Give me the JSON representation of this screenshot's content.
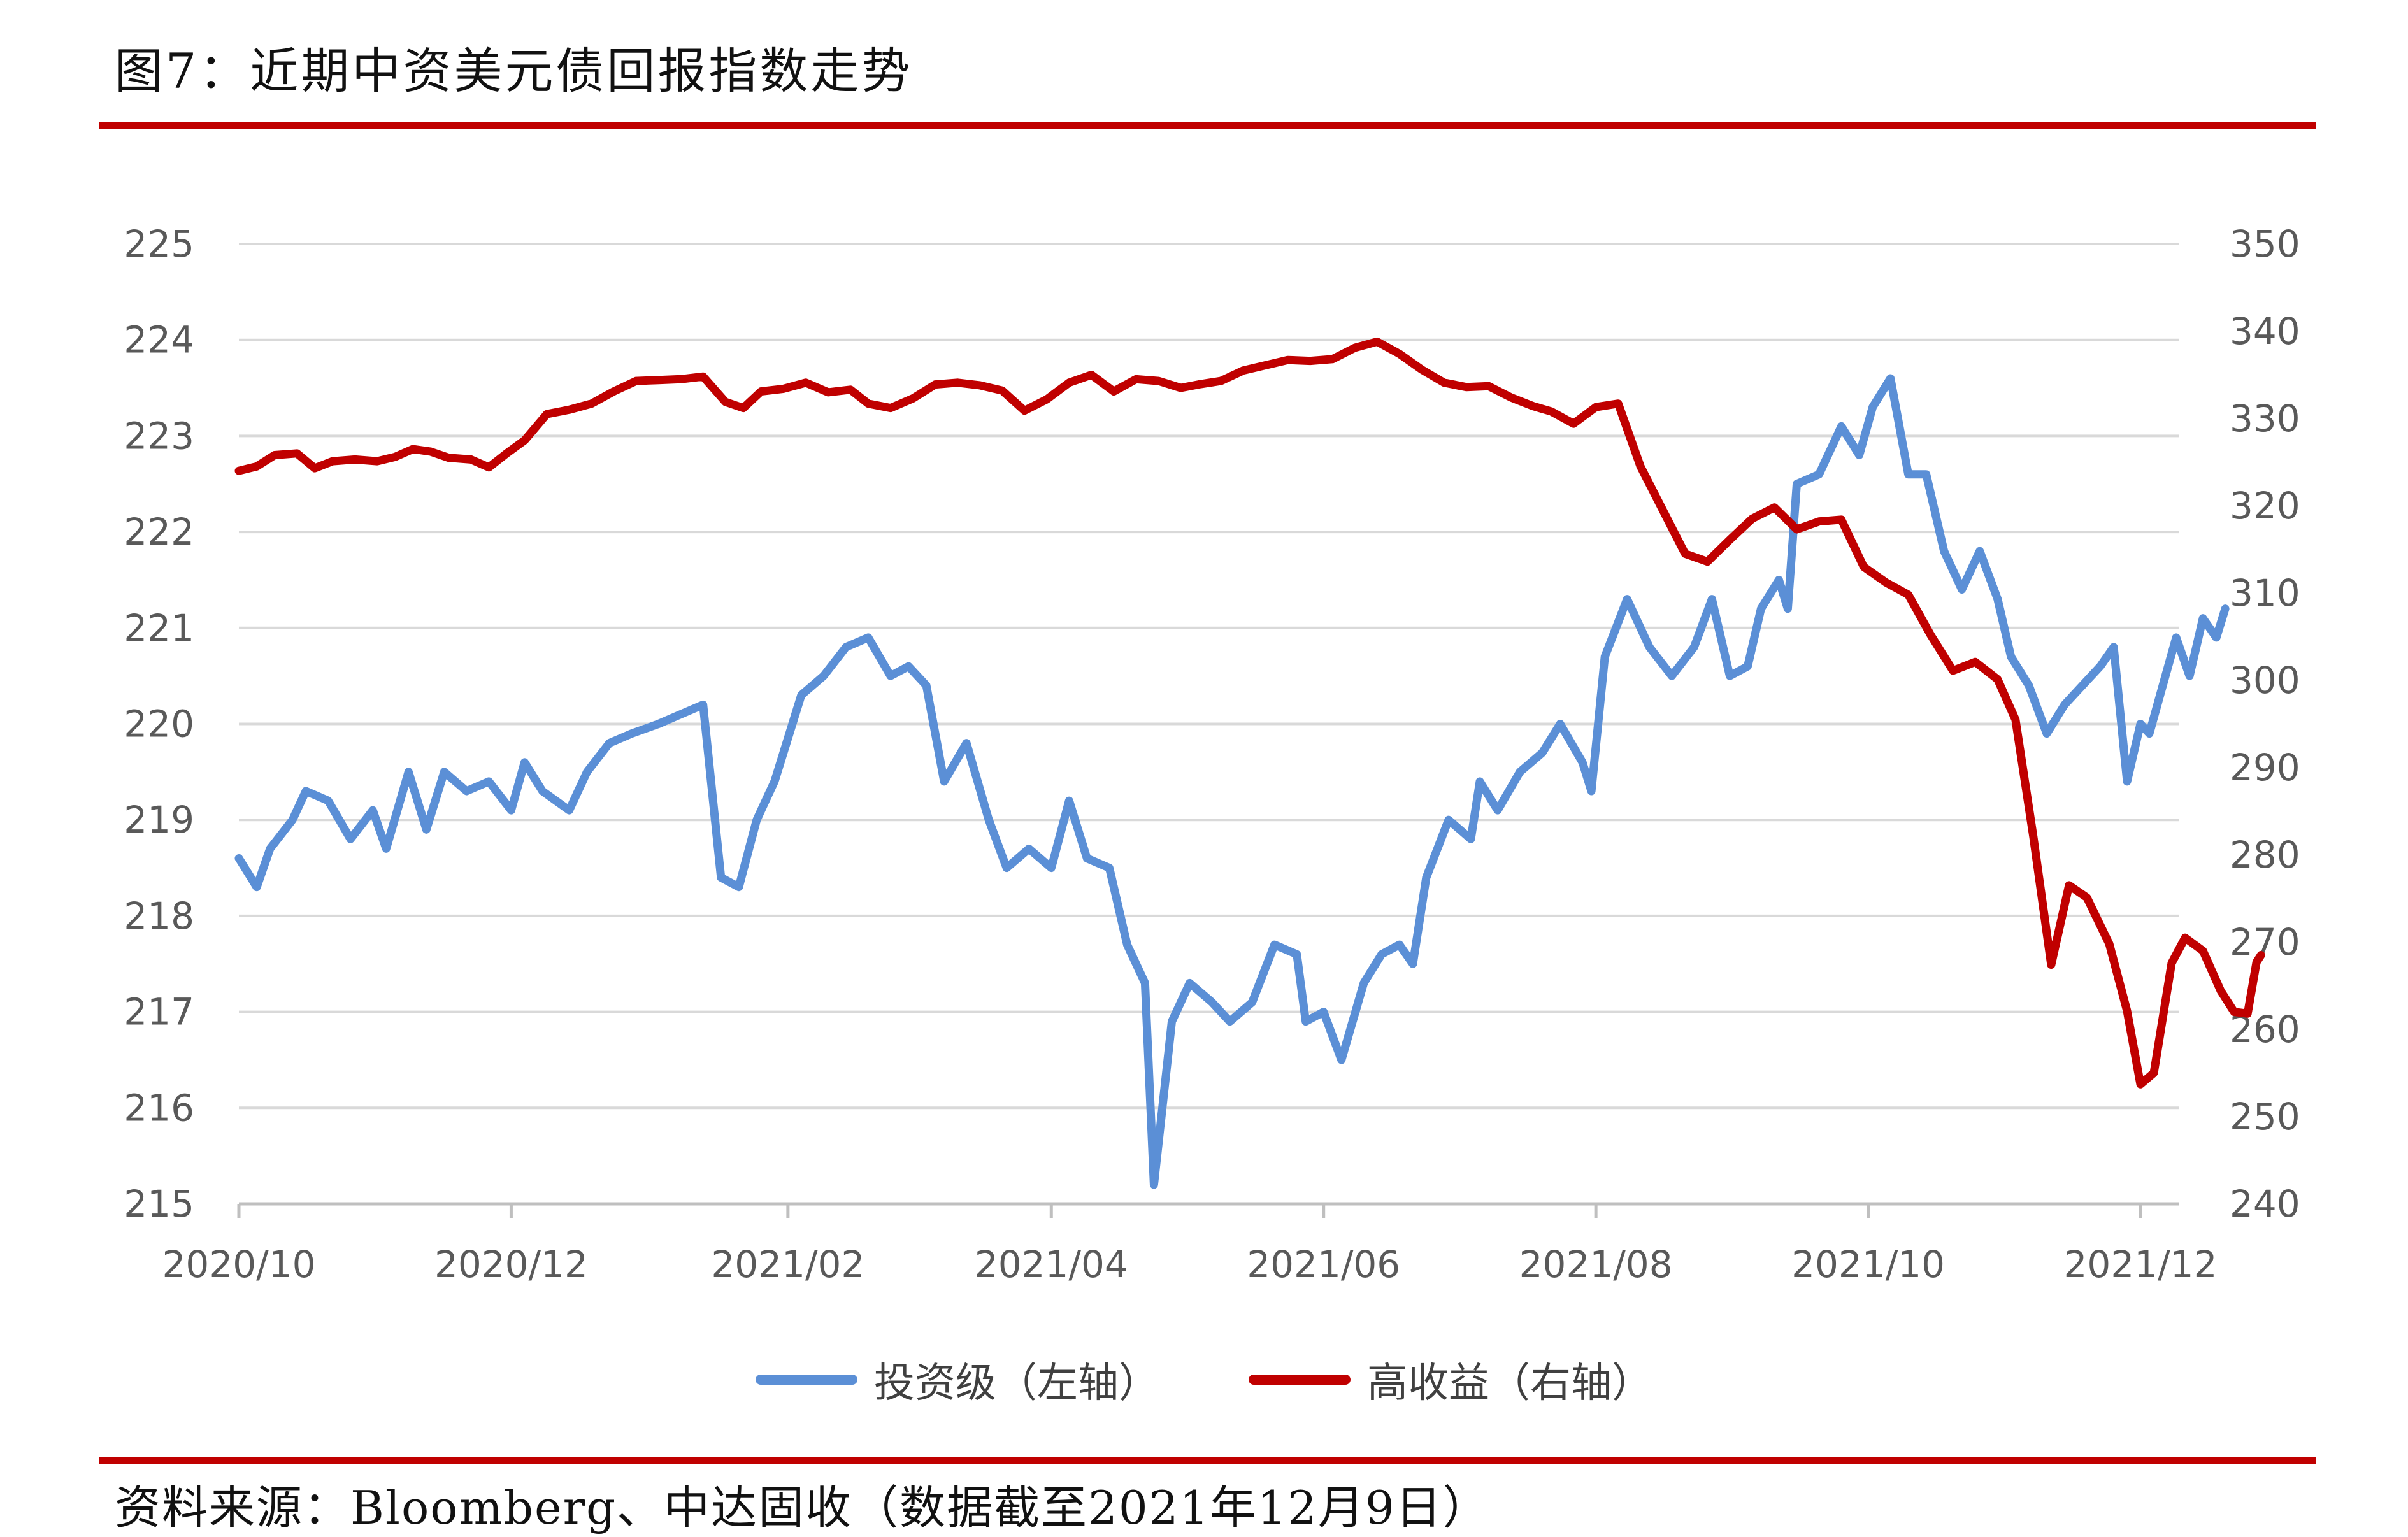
{
  "title": "图7：近期中资美元债回报指数走势",
  "source": "资料来源：Bloomberg、中达固收（数据截至2021年12月9日）",
  "chart_data": {
    "type": "line",
    "x_ticks": [
      "2020/10",
      "2020/12",
      "2021/02",
      "2021/04",
      "2021/06",
      "2021/08",
      "2021/10",
      "2021/12"
    ],
    "y_left": {
      "ylim": [
        215,
        225
      ],
      "ticks": [
        215,
        216,
        217,
        218,
        219,
        220,
        221,
        222,
        223,
        224,
        225
      ]
    },
    "y_right": {
      "ylim": [
        240,
        350
      ],
      "ticks": [
        240,
        250,
        260,
        270,
        280,
        290,
        300,
        310,
        320,
        330,
        340,
        350
      ]
    },
    "grid": true,
    "legend_position": "bottom",
    "series": [
      {
        "name": "投资级（左轴）",
        "axis": "left",
        "color": "#5b8fd6",
        "points": [
          [
            "2020-10-01",
            218.6
          ],
          [
            "2020-10-05",
            218.3
          ],
          [
            "2020-10-08",
            218.7
          ],
          [
            "2020-10-13",
            219.0
          ],
          [
            "2020-10-16",
            219.3
          ],
          [
            "2020-10-21",
            219.2
          ],
          [
            "2020-10-26",
            218.8
          ],
          [
            "2020-10-31",
            219.1
          ],
          [
            "2020-11-03",
            218.7
          ],
          [
            "2020-11-08",
            219.5
          ],
          [
            "2020-11-12",
            218.9
          ],
          [
            "2020-11-16",
            219.5
          ],
          [
            "2020-11-21",
            219.3
          ],
          [
            "2020-11-26",
            219.4
          ],
          [
            "2020-12-01",
            219.1
          ],
          [
            "2020-12-04",
            219.6
          ],
          [
            "2020-12-08",
            219.3
          ],
          [
            "2020-12-14",
            219.1
          ],
          [
            "2020-12-18",
            219.5
          ],
          [
            "2020-12-23",
            219.8
          ],
          [
            "2020-12-28",
            219.9
          ],
          [
            "2021-01-03",
            220.0
          ],
          [
            "2021-01-08",
            220.1
          ],
          [
            "2021-01-13",
            220.2
          ],
          [
            "2021-01-17",
            218.4
          ],
          [
            "2021-01-21",
            218.3
          ],
          [
            "2021-01-25",
            219.0
          ],
          [
            "2021-01-29",
            219.4
          ],
          [
            "2021-02-04",
            220.3
          ],
          [
            "2021-02-09",
            220.5
          ],
          [
            "2021-02-14",
            220.8
          ],
          [
            "2021-02-19",
            220.9
          ],
          [
            "2021-02-24",
            220.5
          ],
          [
            "2021-02-28",
            220.6
          ],
          [
            "2021-03-04",
            220.4
          ],
          [
            "2021-03-08",
            219.4
          ],
          [
            "2021-03-13",
            219.8
          ],
          [
            "2021-03-18",
            219.0
          ],
          [
            "2021-03-22",
            218.5
          ],
          [
            "2021-03-27",
            218.7
          ],
          [
            "2021-04-01",
            218.5
          ],
          [
            "2021-04-05",
            219.2
          ],
          [
            "2021-04-09",
            218.6
          ],
          [
            "2021-04-14",
            218.5
          ],
          [
            "2021-04-18",
            217.7
          ],
          [
            "2021-04-22",
            217.3
          ],
          [
            "2021-04-24",
            215.2
          ],
          [
            "2021-04-28",
            216.9
          ],
          [
            "2021-05-02",
            217.3
          ],
          [
            "2021-05-07",
            217.1
          ],
          [
            "2021-05-11",
            216.9
          ],
          [
            "2021-05-16",
            217.1
          ],
          [
            "2021-05-21",
            217.7
          ],
          [
            "2021-05-26",
            217.6
          ],
          [
            "2021-05-28",
            216.9
          ],
          [
            "2021-06-01",
            217.0
          ],
          [
            "2021-06-05",
            216.5
          ],
          [
            "2021-06-10",
            217.3
          ],
          [
            "2021-06-14",
            217.6
          ],
          [
            "2021-06-18",
            217.7
          ],
          [
            "2021-06-21",
            217.5
          ],
          [
            "2021-06-24",
            218.4
          ],
          [
            "2021-06-29",
            219.0
          ],
          [
            "2021-07-04",
            218.8
          ],
          [
            "2021-07-06",
            219.4
          ],
          [
            "2021-07-10",
            219.1
          ],
          [
            "2021-07-15",
            219.5
          ],
          [
            "2021-07-20",
            219.7
          ],
          [
            "2021-07-24",
            220.0
          ],
          [
            "2021-07-29",
            219.6
          ],
          [
            "2021-07-31",
            219.3
          ],
          [
            "2021-08-03",
            220.7
          ],
          [
            "2021-08-08",
            221.3
          ],
          [
            "2021-08-13",
            220.8
          ],
          [
            "2021-08-18",
            220.5
          ],
          [
            "2021-08-23",
            220.8
          ],
          [
            "2021-08-27",
            221.3
          ],
          [
            "2021-08-31",
            220.5
          ],
          [
            "2021-09-04",
            220.6
          ],
          [
            "2021-09-07",
            221.2
          ],
          [
            "2021-09-11",
            221.5
          ],
          [
            "2021-09-13",
            221.2
          ],
          [
            "2021-09-15",
            222.5
          ],
          [
            "2021-09-20",
            222.6
          ],
          [
            "2021-09-25",
            223.1
          ],
          [
            "2021-09-29",
            222.8
          ],
          [
            "2021-10-02",
            223.3
          ],
          [
            "2021-10-06",
            223.6
          ],
          [
            "2021-10-10",
            222.6
          ],
          [
            "2021-10-14",
            222.6
          ],
          [
            "2021-10-18",
            221.8
          ],
          [
            "2021-10-22",
            221.4
          ],
          [
            "2021-10-26",
            221.8
          ],
          [
            "2021-10-30",
            221.3
          ],
          [
            "2021-11-02",
            220.7
          ],
          [
            "2021-11-06",
            220.4
          ],
          [
            "2021-11-10",
            219.9
          ],
          [
            "2021-11-14",
            220.2
          ],
          [
            "2021-11-18",
            220.4
          ],
          [
            "2021-11-22",
            220.6
          ],
          [
            "2021-11-25",
            220.8
          ],
          [
            "2021-11-28",
            219.4
          ],
          [
            "2021-12-01",
            220.0
          ],
          [
            "2021-12-03",
            219.9
          ],
          [
            "2021-12-06",
            220.4
          ],
          [
            "2021-12-09",
            220.9
          ],
          [
            "2021-12-12",
            220.5
          ],
          [
            "2021-12-15",
            221.1
          ],
          [
            "2021-12-18",
            220.9
          ],
          [
            "2021-12-20",
            221.2
          ]
        ]
      },
      {
        "name": "高收益（右轴）",
        "axis": "right",
        "color": "#c00000",
        "points": [
          [
            "2020-10-01",
            324.0
          ],
          [
            "2020-10-05",
            324.5
          ],
          [
            "2020-10-09",
            325.8
          ],
          [
            "2020-10-14",
            326.0
          ],
          [
            "2020-10-18",
            324.3
          ],
          [
            "2020-10-22",
            325.1
          ],
          [
            "2020-10-27",
            325.3
          ],
          [
            "2020-11-01",
            325.1
          ],
          [
            "2020-11-05",
            325.6
          ],
          [
            "2020-11-09",
            326.5
          ],
          [
            "2020-11-13",
            326.2
          ],
          [
            "2020-11-17",
            325.5
          ],
          [
            "2020-11-22",
            325.3
          ],
          [
            "2020-11-26",
            324.4
          ],
          [
            "2020-11-30",
            326.0
          ],
          [
            "2020-12-04",
            327.5
          ],
          [
            "2020-12-09",
            330.5
          ],
          [
            "2020-12-14",
            331.0
          ],
          [
            "2020-12-19",
            331.7
          ],
          [
            "2020-12-24",
            333.1
          ],
          [
            "2020-12-29",
            334.3
          ],
          [
            "2021-01-03",
            334.4
          ],
          [
            "2021-01-08",
            334.5
          ],
          [
            "2021-01-13",
            334.8
          ],
          [
            "2021-01-18",
            331.9
          ],
          [
            "2021-01-22",
            331.2
          ],
          [
            "2021-01-26",
            333.1
          ],
          [
            "2021-01-31",
            333.4
          ],
          [
            "2021-02-05",
            334.1
          ],
          [
            "2021-02-10",
            333.0
          ],
          [
            "2021-02-15",
            333.3
          ],
          [
            "2021-02-19",
            331.7
          ],
          [
            "2021-02-24",
            331.2
          ],
          [
            "2021-03-01",
            332.3
          ],
          [
            "2021-03-06",
            333.9
          ],
          [
            "2021-03-11",
            334.1
          ],
          [
            "2021-03-16",
            333.8
          ],
          [
            "2021-03-21",
            333.2
          ],
          [
            "2021-03-26",
            330.9
          ],
          [
            "2021-03-31",
            332.2
          ],
          [
            "2021-04-05",
            334.1
          ],
          [
            "2021-04-10",
            335.0
          ],
          [
            "2021-04-15",
            333.1
          ],
          [
            "2021-04-20",
            334.5
          ],
          [
            "2021-04-25",
            334.3
          ],
          [
            "2021-04-30",
            333.5
          ],
          [
            "2021-05-04",
            333.9
          ],
          [
            "2021-05-09",
            334.3
          ],
          [
            "2021-05-14",
            335.5
          ],
          [
            "2021-05-19",
            336.1
          ],
          [
            "2021-05-24",
            336.7
          ],
          [
            "2021-05-29",
            336.6
          ],
          [
            "2021-06-03",
            336.8
          ],
          [
            "2021-06-08",
            338.1
          ],
          [
            "2021-06-13",
            338.8
          ],
          [
            "2021-06-18",
            337.4
          ],
          [
            "2021-06-23",
            335.6
          ],
          [
            "2021-06-28",
            334.1
          ],
          [
            "2021-07-03",
            333.6
          ],
          [
            "2021-07-08",
            333.7
          ],
          [
            "2021-07-13",
            332.4
          ],
          [
            "2021-07-18",
            331.4
          ],
          [
            "2021-07-22",
            330.8
          ],
          [
            "2021-07-27",
            329.4
          ],
          [
            "2021-08-01",
            331.3
          ],
          [
            "2021-08-06",
            331.7
          ],
          [
            "2021-08-11",
            324.5
          ],
          [
            "2021-08-16",
            319.5
          ],
          [
            "2021-08-21",
            314.5
          ],
          [
            "2021-08-26",
            313.6
          ],
          [
            "2021-08-31",
            316.1
          ],
          [
            "2021-09-05",
            318.5
          ],
          [
            "2021-09-10",
            319.8
          ],
          [
            "2021-09-15",
            317.3
          ],
          [
            "2021-09-20",
            318.2
          ],
          [
            "2021-09-25",
            318.4
          ],
          [
            "2021-09-30",
            313.0
          ],
          [
            "2021-10-05",
            311.2
          ],
          [
            "2021-10-10",
            309.8
          ],
          [
            "2021-10-15",
            305.2
          ],
          [
            "2021-10-20",
            301.1
          ],
          [
            "2021-10-25",
            302.1
          ],
          [
            "2021-10-30",
            300.1
          ],
          [
            "2021-11-03",
            295.5
          ],
          [
            "2021-11-07",
            282.1
          ],
          [
            "2021-11-11",
            267.4
          ],
          [
            "2021-11-15",
            276.5
          ],
          [
            "2021-11-19",
            275.1
          ],
          [
            "2021-11-24",
            269.8
          ],
          [
            "2021-11-28",
            262.1
          ],
          [
            "2021-12-01",
            253.7
          ],
          [
            "2021-12-04",
            255.0
          ],
          [
            "2021-12-08",
            267.6
          ],
          [
            "2021-12-11",
            270.5
          ],
          [
            "2021-12-15",
            269.0
          ],
          [
            "2021-12-19",
            264.4
          ],
          [
            "2021-12-22",
            262.0
          ],
          [
            "2021-12-25",
            261.8
          ],
          [
            "2021-12-27",
            267.7
          ],
          [
            "2021-12-28",
            268.5
          ]
        ]
      }
    ]
  }
}
